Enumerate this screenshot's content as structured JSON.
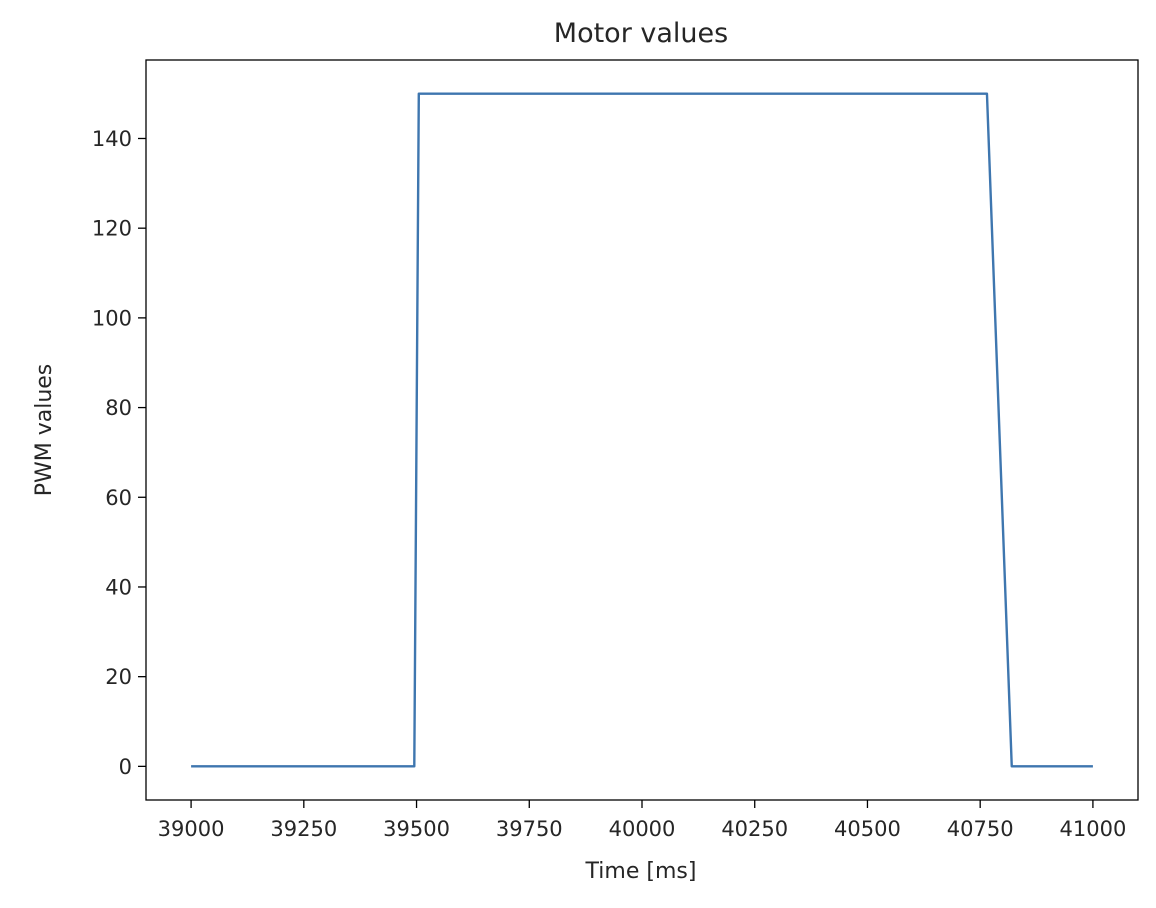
{
  "chart_data": {
    "type": "line",
    "title": "Motor values",
    "xlabel": "Time [ms]",
    "ylabel": "PWM values",
    "xlim": [
      38900,
      41100
    ],
    "ylim": [
      -7.5,
      157.5
    ],
    "xticks": [
      39000,
      39250,
      39500,
      39750,
      40000,
      40250,
      40500,
      40750,
      41000
    ],
    "yticks": [
      0,
      20,
      40,
      60,
      80,
      100,
      120,
      140
    ],
    "grid": false,
    "line_color": "#3e76af",
    "series": [
      {
        "x": [
          39000,
          39495,
          39505,
          40765,
          40820,
          41000
        ],
        "y": [
          0,
          0,
          150,
          150,
          0,
          0
        ]
      }
    ]
  }
}
